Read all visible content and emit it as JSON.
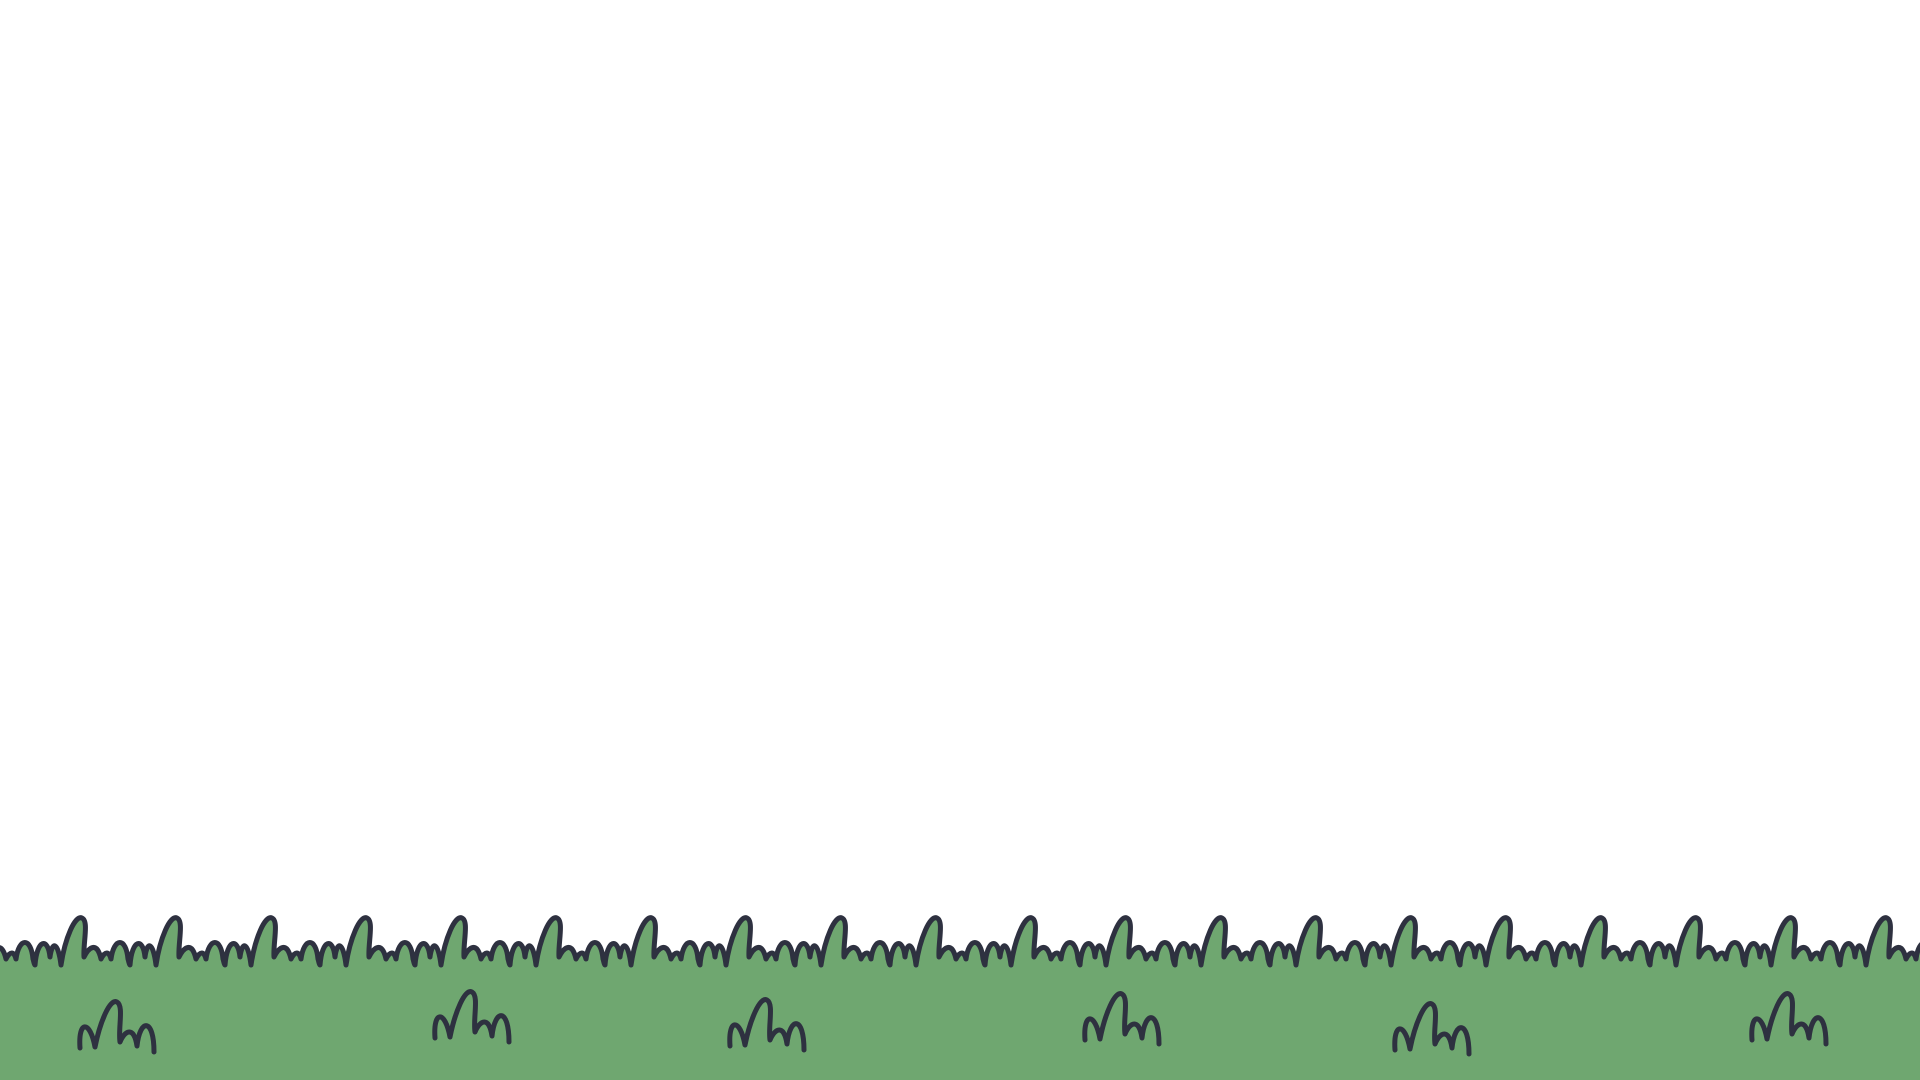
{
  "scene": {
    "sky_color": "#ffffff",
    "grass_color": "#6fa770",
    "outline_color": "#2e3140",
    "background_icon": "grass-ground-icon",
    "tuft_icon": "grass-tuft-icon"
  }
}
